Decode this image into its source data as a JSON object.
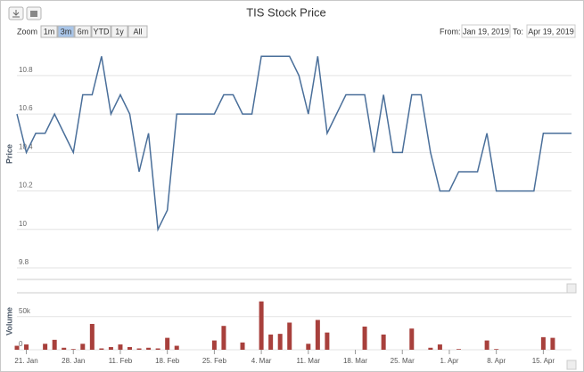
{
  "ui": {
    "zoom_label": "Zoom",
    "buttons": [
      "1m",
      "3m",
      "6m",
      "YTD",
      "1y",
      "All"
    ],
    "selected_button": 1,
    "from_label": "From:",
    "from_date": "Jan 19, 2019",
    "to_label": "To:",
    "to_date": "Apr 19, 2019"
  },
  "chart_data": [
    {
      "type": "line",
      "title": "TIS Stock Price",
      "y_label": "Price",
      "color": "#4a6f9a",
      "grid": true,
      "xlim": [
        0,
        59
      ],
      "ylim": [
        9.74,
        10.98
      ],
      "yticks": [
        9.8,
        10,
        10.2,
        10.4,
        10.6,
        10.8
      ],
      "values": [
        10.6,
        10.4,
        10.5,
        10.5,
        10.6,
        10.5,
        10.4,
        10.7,
        10.7,
        10.9,
        10.6,
        10.7,
        10.6,
        10.3,
        10.5,
        10.0,
        10.1,
        10.6,
        10.6,
        10.6,
        10.6,
        10.6,
        10.7,
        10.7,
        10.6,
        10.6,
        10.9,
        10.9,
        10.9,
        10.9,
        10.8,
        10.6,
        10.9,
        10.5,
        10.6,
        10.7,
        10.7,
        10.7,
        10.4,
        10.7,
        10.4,
        10.4,
        10.7,
        10.7,
        10.4,
        10.2,
        10.2,
        10.3,
        10.3,
        10.3,
        10.5,
        10.2,
        10.2,
        10.2,
        10.2,
        10.2,
        10.5,
        10.5,
        10.5,
        10.5
      ]
    },
    {
      "type": "bar",
      "y_label": "Volume",
      "color": "#a8403c",
      "grid": true,
      "xlim": [
        0,
        59
      ],
      "ylim": [
        0,
        86000
      ],
      "yticks": [
        0,
        {
          "value": 50000,
          "label": "50k"
        }
      ],
      "xticks": [
        {
          "value": 1,
          "label": "21. Jan"
        },
        {
          "value": 6,
          "label": "28. Jan"
        },
        {
          "value": 11,
          "label": "11. Feb"
        },
        {
          "value": 16,
          "label": "18. Feb"
        },
        {
          "value": 21,
          "label": "25. Feb"
        },
        {
          "value": 26,
          "label": "4. Mar"
        },
        {
          "value": 31,
          "label": "11. Mar"
        },
        {
          "value": 36,
          "label": "18. Mar"
        },
        {
          "value": 41,
          "label": "25. Mar"
        },
        {
          "value": 46,
          "label": "1. Apr"
        },
        {
          "value": 51,
          "label": "8. Apr"
        },
        {
          "value": 56,
          "label": "15. Apr"
        }
      ],
      "values": [
        6000,
        8000,
        0,
        9000,
        15000,
        3000,
        1000,
        9000,
        39000,
        2000,
        4000,
        8000,
        4000,
        2000,
        3000,
        2000,
        18000,
        6000,
        0,
        0,
        0,
        14000,
        36000,
        0,
        11000,
        0,
        73000,
        23000,
        24000,
        41000,
        0,
        9000,
        45000,
        26000,
        0,
        0,
        0,
        35000,
        0,
        23000,
        0,
        0,
        32000,
        0,
        3000,
        8000,
        0,
        1000,
        0,
        0,
        14000,
        1000,
        0,
        0,
        0,
        0,
        19000,
        18000,
        0,
        0
      ]
    }
  ]
}
